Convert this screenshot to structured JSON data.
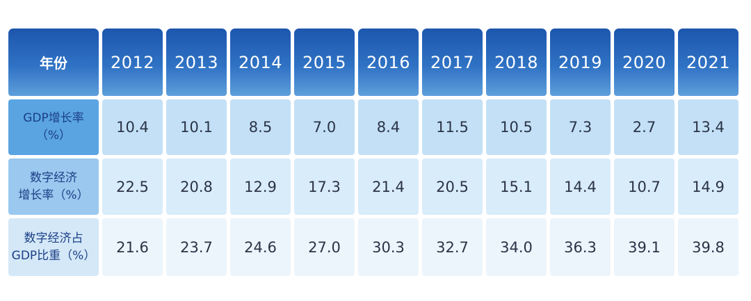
{
  "table": {
    "header_label": "年份",
    "years": [
      "2012",
      "2013",
      "2014",
      "2015",
      "2016",
      "2017",
      "2018",
      "2019",
      "2020",
      "2021"
    ],
    "rows": [
      {
        "label": "GDP增长率\n（%）",
        "values": [
          "10.4",
          "10.1",
          "8.5",
          "7.0",
          "8.4",
          "11.5",
          "10.5",
          "7.3",
          "2.7",
          "13.4"
        ]
      },
      {
        "label": "数字经济\n增长率（%）",
        "values": [
          "22.5",
          "20.8",
          "12.9",
          "17.3",
          "21.4",
          "20.5",
          "15.1",
          "14.4",
          "10.7",
          "14.9"
        ]
      },
      {
        "label": "数字经济占\nGDP比重（%）",
        "values": [
          "21.6",
          "23.7",
          "24.6",
          "27.0",
          "30.3",
          "32.7",
          "34.0",
          "36.3",
          "39.1",
          "39.8"
        ]
      }
    ]
  },
  "chart_data": {
    "type": "table",
    "columns": [
      "年份",
      "2012",
      "2013",
      "2014",
      "2015",
      "2016",
      "2017",
      "2018",
      "2019",
      "2020",
      "2021"
    ],
    "rows": [
      [
        "GDP增长率（%）",
        10.4,
        10.1,
        8.5,
        7.0,
        8.4,
        11.5,
        10.5,
        7.3,
        2.7,
        13.4
      ],
      [
        "数字经济增长率（%）",
        22.5,
        20.8,
        12.9,
        17.3,
        21.4,
        20.5,
        15.1,
        14.4,
        10.7,
        14.9
      ],
      [
        "数字经济占GDP比重（%）",
        21.6,
        23.7,
        24.6,
        27.0,
        30.3,
        32.7,
        34.0,
        36.3,
        39.1,
        39.8
      ]
    ]
  }
}
